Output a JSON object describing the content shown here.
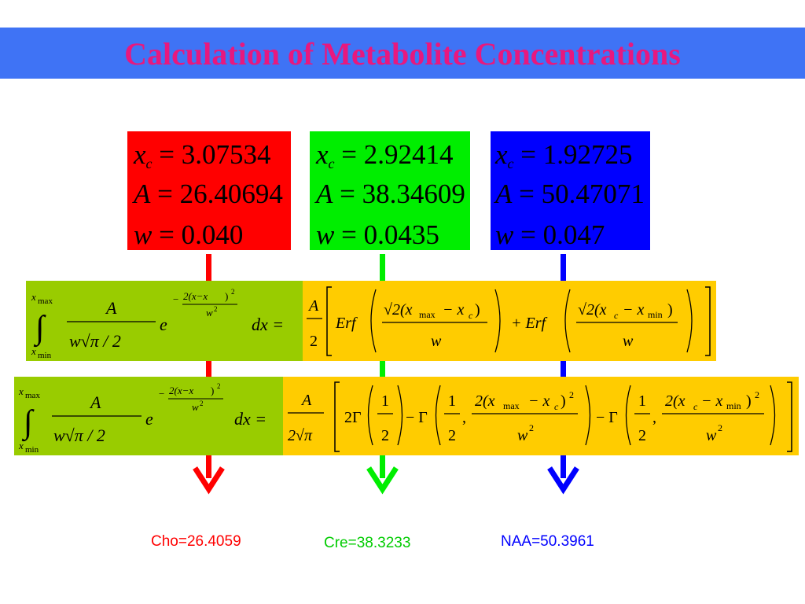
{
  "title": "Calculation of Metabolite Concentrations",
  "colors": {
    "title_bar": "#3F73F5",
    "title_text": "#E8187E",
    "cho": "#FF0000",
    "cre": "#00EE00",
    "naa": "#0000FF",
    "formula_left": "#99CC00",
    "formula_right": "#FFCC00"
  },
  "param_boxes": [
    {
      "xc": "3.07534",
      "A": "26.40694",
      "w": "0.040"
    },
    {
      "xc": "2.92414",
      "A": "38.34609",
      "w": "0.0435"
    },
    {
      "xc": "1.92725",
      "A": "50.47071",
      "w": "0.047"
    }
  ],
  "formula_gaussian": {
    "integral_upper": "max",
    "integral_lower": "min",
    "coef_num": "A",
    "coef_den": "w√π / 2",
    "exp_base": "e",
    "exp_num": "2(x−x",
    "exp_den": "w",
    "differential": "dx =",
    "result_coef_num": "A",
    "result_coef_den": "2",
    "erf_1": "Erf",
    "erf_2": "+ Erf",
    "erf_arg1_num": "√2(x",
    "erf_arg2_num": "√2(x",
    "erf_den": "w"
  },
  "formula_lorentzian": {
    "integral_upper": "max",
    "integral_lower": "min",
    "coef_num": "A",
    "coef_den": "w√π / 2",
    "exp_base": "e",
    "exp_num": "2(x−x",
    "exp_den": "w",
    "differential": "dx =",
    "result_coef_num": "A",
    "result_coef_den": "2√π",
    "gamma_lead": "2Γ",
    "half_num": "1",
    "half_den": "2",
    "minus_gamma": "− Γ",
    "arg_num_1": "2(x",
    "arg_num_2": "2(x",
    "arg_den": "w"
  },
  "results": [
    {
      "label": "Cho=26.4059"
    },
    {
      "label": "Cre=38.3233"
    },
    {
      "label": "NAA=50.3961"
    }
  ]
}
